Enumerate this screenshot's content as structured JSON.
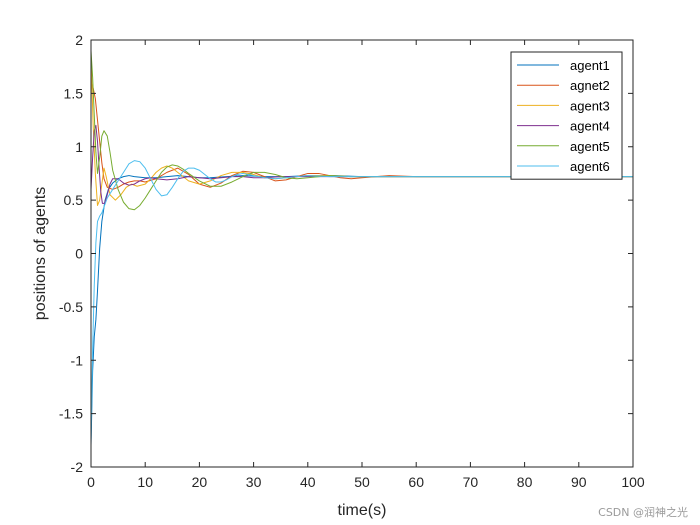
{
  "chart_data": {
    "type": "line",
    "title": "",
    "xlabel": "time(s)",
    "ylabel": "positions of agents",
    "xlim": [
      0,
      100
    ],
    "ylim": [
      -2,
      2
    ],
    "xticks": [
      0,
      10,
      20,
      30,
      40,
      50,
      60,
      70,
      80,
      90,
      100
    ],
    "yticks": [
      -2,
      -1.5,
      -1,
      -0.5,
      0,
      0.5,
      1,
      1.5,
      2
    ],
    "grid": false,
    "legend_position": "top-right",
    "series": [
      {
        "name": "agent1",
        "color": "#0072BD",
        "x": [
          0,
          0.3,
          0.6,
          0.9,
          1.2,
          1.6,
          2.0,
          2.6,
          3.2,
          4,
          5,
          6,
          7,
          8,
          10,
          12,
          14,
          16,
          18,
          20,
          22,
          25,
          28,
          32,
          36,
          40,
          45,
          50,
          60,
          70,
          80,
          90,
          100
        ],
        "y": [
          -1.8,
          -1.1,
          -0.78,
          -0.62,
          -0.35,
          0.05,
          0.3,
          0.5,
          0.6,
          0.66,
          0.7,
          0.72,
          0.73,
          0.72,
          0.71,
          0.71,
          0.72,
          0.73,
          0.72,
          0.71,
          0.71,
          0.72,
          0.73,
          0.72,
          0.72,
          0.73,
          0.73,
          0.72,
          0.72,
          0.72,
          0.72,
          0.72,
          0.72
        ]
      },
      {
        "name": "agnet2",
        "color": "#D95319",
        "x": [
          0,
          0.4,
          0.8,
          1.2,
          1.6,
          2.0,
          2.4,
          3,
          4,
          5,
          6,
          7,
          8,
          9,
          10,
          12,
          14,
          16,
          18,
          20,
          22,
          24,
          26,
          28,
          30,
          32,
          34,
          36,
          38,
          40,
          42,
          44,
          46,
          48,
          50,
          55,
          60,
          70,
          80,
          90,
          100
        ],
        "y": [
          1.6,
          1.55,
          1.45,
          1.25,
          1.05,
          0.85,
          0.7,
          0.62,
          0.6,
          0.62,
          0.65,
          0.67,
          0.68,
          0.68,
          0.67,
          0.7,
          0.76,
          0.8,
          0.74,
          0.65,
          0.62,
          0.66,
          0.73,
          0.77,
          0.76,
          0.72,
          0.68,
          0.69,
          0.72,
          0.75,
          0.75,
          0.73,
          0.71,
          0.7,
          0.71,
          0.73,
          0.72,
          0.72,
          0.72,
          0.72,
          0.72
        ]
      },
      {
        "name": "agent3",
        "color": "#EDB120",
        "x": [
          0,
          0.4,
          0.8,
          1.2,
          1.6,
          2.0,
          2.4,
          2.8,
          3.5,
          4.5,
          5.5,
          6.5,
          7.5,
          8.5,
          10,
          11,
          12,
          13,
          14,
          15,
          16,
          18,
          20,
          22,
          24,
          26,
          28,
          30,
          32,
          34,
          36,
          40,
          44,
          48,
          52,
          60,
          70,
          80,
          90,
          100
        ],
        "y": [
          1.85,
          1.2,
          0.75,
          0.45,
          0.5,
          0.65,
          0.8,
          0.72,
          0.55,
          0.5,
          0.55,
          0.62,
          0.65,
          0.63,
          0.65,
          0.7,
          0.76,
          0.8,
          0.82,
          0.8,
          0.76,
          0.68,
          0.65,
          0.68,
          0.73,
          0.76,
          0.76,
          0.74,
          0.71,
          0.7,
          0.71,
          0.73,
          0.73,
          0.72,
          0.72,
          0.72,
          0.72,
          0.72,
          0.72,
          0.72
        ]
      },
      {
        "name": "agent4",
        "color": "#7E2F8E",
        "x": [
          0,
          0.3,
          0.6,
          0.9,
          1.2,
          1.5,
          1.8,
          2.1,
          2.5,
          3,
          3.5,
          4,
          5,
          6,
          7,
          8,
          9,
          10,
          11,
          12,
          14,
          16,
          18,
          20,
          22,
          24,
          26,
          28,
          30,
          32,
          35,
          40,
          45,
          50,
          60,
          70,
          80,
          90,
          100
        ],
        "y": [
          0.6,
          0.9,
          1.15,
          1.2,
          1.05,
          0.8,
          0.58,
          0.47,
          0.47,
          0.55,
          0.65,
          0.7,
          0.7,
          0.66,
          0.64,
          0.65,
          0.68,
          0.7,
          0.71,
          0.7,
          0.69,
          0.7,
          0.72,
          0.71,
          0.7,
          0.71,
          0.72,
          0.72,
          0.71,
          0.71,
          0.72,
          0.72,
          0.72,
          0.72,
          0.72,
          0.72,
          0.72,
          0.72,
          0.72
        ]
      },
      {
        "name": "agent5",
        "color": "#77AC30",
        "x": [
          0,
          0.3,
          0.6,
          0.9,
          1.2,
          1.6,
          2.0,
          2.4,
          3,
          3.5,
          4,
          5,
          6,
          7,
          8,
          9,
          10,
          11,
          12,
          13,
          14,
          15,
          16,
          17,
          18,
          20,
          22,
          24,
          26,
          28,
          30,
          32,
          34,
          36,
          38,
          40,
          44,
          48,
          52,
          60,
          70,
          80,
          90,
          100
        ],
        "y": [
          1.9,
          1.65,
          1.3,
          0.95,
          0.75,
          0.9,
          1.1,
          1.15,
          1.1,
          0.95,
          0.78,
          0.6,
          0.48,
          0.42,
          0.41,
          0.45,
          0.52,
          0.6,
          0.68,
          0.76,
          0.81,
          0.83,
          0.82,
          0.79,
          0.75,
          0.68,
          0.63,
          0.63,
          0.67,
          0.72,
          0.76,
          0.76,
          0.74,
          0.71,
          0.7,
          0.71,
          0.73,
          0.72,
          0.72,
          0.72,
          0.72,
          0.72,
          0.72,
          0.72
        ]
      },
      {
        "name": "agent6",
        "color": "#4DBEEE",
        "x": [
          0,
          0.3,
          0.6,
          0.9,
          1.2,
          1.6,
          2.0,
          2.5,
          3,
          4,
          5,
          6,
          7,
          8,
          9,
          10,
          11,
          12,
          13,
          14,
          15,
          16,
          17,
          18,
          19,
          20,
          21,
          22,
          23,
          24,
          25,
          26,
          27,
          28,
          29,
          30,
          32,
          34,
          36,
          38,
          40,
          44,
          48,
          52,
          60,
          70,
          80,
          90,
          100
        ],
        "y": [
          -1.75,
          -0.9,
          -0.3,
          0.1,
          0.3,
          0.35,
          0.38,
          0.45,
          0.52,
          0.6,
          0.68,
          0.76,
          0.84,
          0.87,
          0.86,
          0.8,
          0.7,
          0.6,
          0.54,
          0.55,
          0.62,
          0.7,
          0.77,
          0.8,
          0.8,
          0.78,
          0.74,
          0.7,
          0.67,
          0.67,
          0.69,
          0.72,
          0.74,
          0.75,
          0.74,
          0.73,
          0.71,
          0.7,
          0.71,
          0.72,
          0.73,
          0.72,
          0.72,
          0.72,
          0.72,
          0.72,
          0.72,
          0.72,
          0.72
        ]
      }
    ]
  },
  "watermark": "CSDN @润神之光"
}
